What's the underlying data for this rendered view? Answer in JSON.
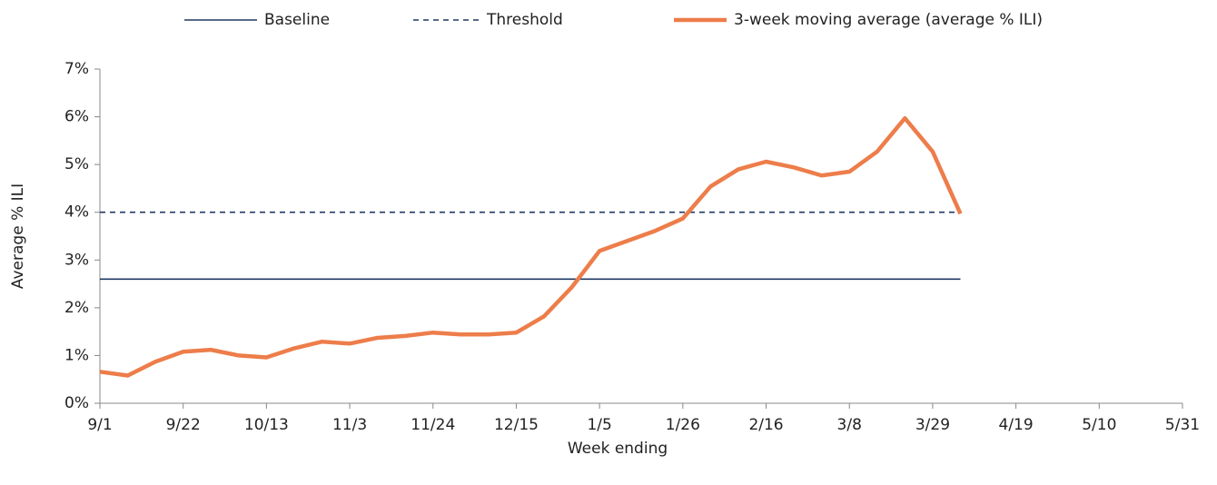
{
  "chart_data": {
    "type": "line",
    "xlabel": "Week ending",
    "ylabel": "Average % ILI",
    "categories": [
      "9/1",
      null,
      null,
      "9/22",
      null,
      null,
      "10/13",
      null,
      null,
      "11/3",
      null,
      null,
      "11/24",
      null,
      null,
      "12/15",
      null,
      null,
      "1/5",
      null,
      null,
      "1/26",
      null,
      null,
      "2/16",
      null,
      null,
      "3/8",
      null,
      null,
      "3/29",
      null,
      null,
      "4/19",
      null,
      null,
      "5/10",
      null,
      null,
      "5/31"
    ],
    "ylim": [
      0,
      7
    ],
    "yticks": [
      {
        "value": 0,
        "label": "0%"
      },
      {
        "value": 1,
        "label": "1%"
      },
      {
        "value": 2,
        "label": "2%"
      },
      {
        "value": 3,
        "label": "3%"
      },
      {
        "value": 4,
        "label": "4%"
      },
      {
        "value": 5,
        "label": "5%"
      },
      {
        "value": 6,
        "label": "6%"
      },
      {
        "value": 7,
        "label": "7%"
      }
    ],
    "grid": false,
    "legend": "top",
    "series": [
      {
        "name": "Baseline",
        "color": "#1f3864",
        "dashed": false,
        "values": [
          2.6,
          2.6,
          2.6,
          2.6,
          2.6,
          2.6,
          2.6,
          2.6,
          2.6,
          2.6,
          2.6,
          2.6,
          2.6,
          2.6,
          2.6,
          2.6,
          2.6,
          2.6,
          2.6,
          2.6,
          2.6,
          2.6,
          2.6,
          2.6,
          2.6,
          2.6,
          2.6,
          2.6,
          2.6,
          2.6,
          2.6,
          2.6,
          null,
          null,
          null,
          null,
          null,
          null,
          null,
          null
        ]
      },
      {
        "name": "Threshold",
        "color": "#1f3864",
        "dashed": true,
        "values": [
          4.0,
          4.0,
          4.0,
          4.0,
          4.0,
          4.0,
          4.0,
          4.0,
          4.0,
          4.0,
          4.0,
          4.0,
          4.0,
          4.0,
          4.0,
          4.0,
          4.0,
          4.0,
          4.0,
          4.0,
          4.0,
          4.0,
          4.0,
          4.0,
          4.0,
          4.0,
          4.0,
          4.0,
          4.0,
          4.0,
          4.0,
          4.0,
          null,
          null,
          null,
          null,
          null,
          null,
          null,
          null
        ]
      },
      {
        "name": "3-week moving average (average % ILI)",
        "color": "#ed7d4a",
        "dashed": false,
        "values": [
          0.66,
          0.58,
          0.87,
          1.08,
          1.12,
          1.0,
          0.96,
          1.15,
          1.29,
          1.25,
          1.37,
          1.41,
          1.48,
          1.44,
          1.44,
          1.48,
          1.82,
          2.43,
          3.19,
          3.4,
          3.61,
          3.87,
          4.54,
          4.9,
          5.06,
          4.94,
          4.77,
          4.85,
          5.27,
          5.97,
          5.27,
          3.97,
          null,
          null,
          null,
          null,
          null,
          null,
          null,
          null
        ]
      }
    ]
  }
}
